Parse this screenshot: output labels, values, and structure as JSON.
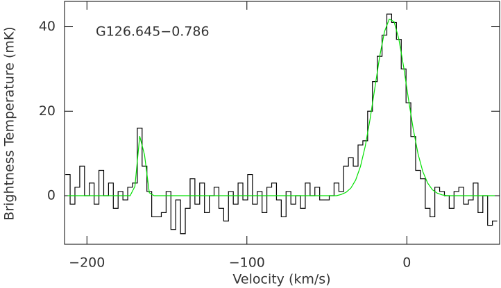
{
  "chart_data": {
    "type": "step",
    "annotation": "G126.645−0.786",
    "xlabel": "Velocity (km/s)",
    "ylabel": "Brightness Temperature (mK)",
    "xlim": [
      -214,
      58
    ],
    "ylim": [
      -11.5,
      46
    ],
    "xticks": [
      {
        "value": -200,
        "label": "−200"
      },
      {
        "value": -100,
        "label": "−100"
      },
      0
    ],
    "yticks": [
      0,
      20,
      40
    ],
    "x": [
      -212,
      -209,
      -206,
      -203,
      -200,
      -197,
      -194,
      -191,
      -188,
      -185,
      -182,
      -179,
      -176,
      -173,
      -170,
      -167,
      -164,
      -161,
      -158,
      -155,
      -152,
      -149,
      -146,
      -143,
      -140,
      -137,
      -134,
      -131,
      -128,
      -125,
      -122,
      -119,
      -116,
      -113,
      -110,
      -107,
      -104,
      -101,
      -98,
      -95,
      -92,
      -89,
      -86,
      -83,
      -80,
      -77,
      -74,
      -71,
      -68,
      -65,
      -62,
      -59,
      -56,
      -53,
      -50,
      -47,
      -44,
      -41,
      -38,
      -35,
      -32,
      -29,
      -26,
      -23,
      -20,
      -17,
      -14,
      -11,
      -8,
      -5,
      -2,
      1,
      4,
      7,
      10,
      13,
      16,
      19,
      22,
      25,
      28,
      31,
      34,
      37,
      40,
      43,
      46,
      49,
      52,
      55
    ],
    "series": [
      {
        "color": "#000000",
        "style": "step",
        "values": [
          5,
          -2,
          2,
          7,
          0,
          3,
          -2,
          6,
          0,
          3,
          -3,
          1,
          -1,
          2,
          3,
          16,
          7,
          1,
          -5,
          -5,
          -4,
          1,
          -8,
          -1,
          -9,
          -3,
          4,
          -2,
          3,
          -4,
          0,
          2,
          -3,
          -6,
          1,
          -2,
          3,
          -1,
          5,
          -2,
          1,
          -4,
          2,
          3,
          -1,
          -5,
          1,
          -2,
          0,
          -3,
          3,
          0,
          2,
          -1,
          -1,
          0,
          3,
          1,
          7,
          9,
          7,
          12,
          13,
          20,
          27,
          33,
          38,
          43,
          41,
          37,
          30,
          22,
          14,
          6,
          4,
          -3,
          -5,
          2,
          1,
          0,
          -3,
          1,
          2,
          -2,
          -1,
          3,
          -4,
          0,
          -7,
          -6
        ]
      },
      {
        "color": "#00e000",
        "style": "line",
        "values": [
          0,
          0,
          0,
          0,
          0,
          0,
          0,
          0,
          0,
          0,
          0,
          0,
          0,
          0,
          2.2,
          14.1,
          9.7,
          0.7,
          0,
          0,
          0,
          0,
          0,
          0,
          0,
          0,
          0,
          0,
          0,
          0,
          0,
          0,
          0,
          0,
          0,
          0,
          0,
          0,
          0,
          0,
          0,
          0,
          0,
          0,
          0,
          0,
          0,
          0,
          0,
          0,
          0,
          0,
          0,
          0,
          0,
          0,
          0,
          0.3,
          0.8,
          1.8,
          3.7,
          6.9,
          11.7,
          18.1,
          25.5,
          32.9,
          38.8,
          41.8,
          41.2,
          37.1,
          30.5,
          22.9,
          15.8,
          9.9,
          5.7,
          3.0,
          1.4,
          0.6,
          0.2,
          0,
          0,
          0,
          0,
          0,
          0,
          0,
          0,
          0,
          0,
          0
        ]
      }
    ]
  }
}
